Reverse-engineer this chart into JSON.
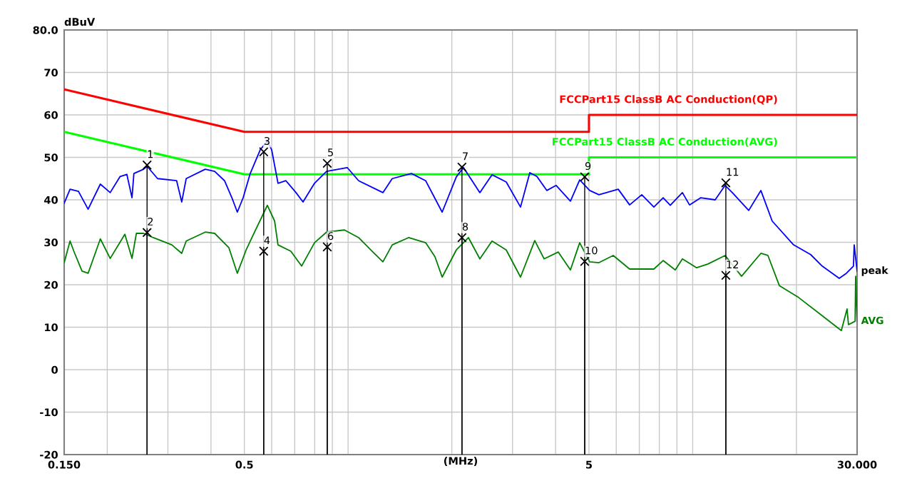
{
  "chart_data": {
    "type": "line",
    "ylabel": "dBuV",
    "xlabel": "(MHz)",
    "log": "x",
    "grid": true,
    "line_style": "solid",
    "marker": "none",
    "xlim": [
      0.15,
      30
    ],
    "ylim": [
      -20,
      80
    ],
    "xticks": [
      {
        "value": 0.15,
        "label": "0.150"
      },
      {
        "value": 0.2,
        "label": null
      },
      {
        "value": 0.3,
        "label": null
      },
      {
        "value": 0.4,
        "label": null
      },
      {
        "value": 0.5,
        "label": "0.5"
      },
      {
        "value": 0.6,
        "label": null
      },
      {
        "value": 0.7,
        "label": null
      },
      {
        "value": 0.8,
        "label": null
      },
      {
        "value": 0.9,
        "label": null
      },
      {
        "value": 1,
        "label": null
      },
      {
        "value": 2,
        "label": null
      },
      {
        "value": 3,
        "label": null
      },
      {
        "value": 4,
        "label": null
      },
      5,
      {
        "value": 6,
        "label": null
      },
      {
        "value": 7,
        "label": null
      },
      {
        "value": 8,
        "label": null
      },
      {
        "value": 9,
        "label": null
      },
      {
        "value": 10,
        "label": null
      },
      {
        "value": 20,
        "label": null
      },
      {
        "value": 30,
        "label": "30.000"
      }
    ],
    "yticks": [
      -20,
      -10,
      0,
      10,
      20,
      30,
      40,
      50,
      60,
      {
        "value": 70,
        "label": "70"
      },
      {
        "value": 80,
        "label": "80.0"
      }
    ],
    "series": [
      {
        "name": "FCCPart15 ClassB AC Conduction(QP)",
        "color": "#ff0000",
        "x": [
          0.15,
          0.5,
          5,
          5,
          30
        ],
        "values": [
          66,
          56,
          56,
          60,
          60
        ]
      },
      {
        "name": "FCCPart15 ClassB AC Conduction(AVG)",
        "color": "#00ff00",
        "x": [
          0.15,
          0.5,
          5,
          5,
          30
        ],
        "values": [
          56,
          46,
          46,
          50,
          50
        ]
      },
      {
        "name": "peak",
        "color": "#0000ff",
        "x": [
          0.15,
          0.156,
          0.165,
          0.176,
          0.191,
          0.204,
          0.218,
          0.228,
          0.236,
          0.239,
          0.255,
          0.261,
          0.28,
          0.318,
          0.329,
          0.339,
          0.385,
          0.41,
          0.438,
          0.46,
          0.477,
          0.496,
          0.52,
          0.556,
          0.583,
          0.6,
          0.626,
          0.66,
          0.706,
          0.74,
          0.799,
          0.866,
          0.994,
          1.073,
          1.262,
          1.343,
          1.527,
          1.679,
          1.875,
          2.061,
          2.162,
          2.412,
          2.616,
          2.877,
          3.165,
          3.368,
          3.531,
          3.774,
          4.016,
          4.418,
          4.7,
          5.024,
          5.345,
          6.08,
          6.561,
          7.115,
          7.715,
          8.208,
          8.609,
          9.336,
          9.79,
          10.56,
          11.62,
          12.42,
          13.03,
          14.54,
          15.77,
          17.01,
          19.62,
          22.0,
          23.75,
          26.62,
          27.92,
          29.28,
          29.42,
          30
        ],
        "values": [
          39.2,
          42.5,
          42.0,
          37.8,
          43.7,
          41.7,
          45.5,
          46.0,
          40.5,
          46.2,
          47.2,
          47.9,
          45.0,
          44.5,
          39.5,
          45.0,
          47.2,
          46.7,
          44.5,
          40.5,
          37.1,
          40.5,
          46.2,
          51.8,
          53.8,
          51.8,
          43.9,
          44.5,
          41.7,
          39.5,
          43.9,
          46.7,
          47.6,
          44.5,
          41.7,
          45.0,
          46.2,
          44.5,
          37.1,
          45.4,
          47.6,
          41.7,
          45.9,
          44.2,
          38.3,
          46.4,
          45.5,
          42.2,
          43.4,
          39.7,
          44.7,
          42.2,
          41.2,
          42.5,
          38.8,
          41.2,
          38.3,
          40.5,
          38.7,
          41.7,
          38.8,
          40.5,
          40.0,
          43.4,
          41.7,
          37.5,
          42.2,
          35.0,
          29.4,
          27.1,
          24.4,
          21.5,
          22.7,
          24.4,
          29.4,
          23.2
        ]
      },
      {
        "name": "AVG",
        "color": "#008000",
        "x": [
          0.15,
          0.156,
          0.16,
          0.169,
          0.176,
          0.191,
          0.204,
          0.225,
          0.236,
          0.243,
          0.255,
          0.272,
          0.308,
          0.329,
          0.339,
          0.385,
          0.41,
          0.451,
          0.477,
          0.506,
          0.538,
          0.583,
          0.612,
          0.626,
          0.682,
          0.733,
          0.799,
          0.866,
          0.976,
          1.073,
          1.18,
          1.262,
          1.343,
          1.498,
          1.679,
          1.787,
          1.875,
          2.061,
          2.235,
          2.412,
          2.616,
          2.877,
          3.165,
          3.48,
          3.705,
          4.074,
          4.418,
          4.7,
          5.024,
          5.345,
          5.88,
          6.561,
          7.715,
          8.208,
          8.901,
          9.336,
          10.27,
          11.08,
          12.42,
          13.86,
          15.77,
          16.53,
          17.84,
          20.29,
          23.41,
          27.0,
          28.05,
          28.32,
          29.6,
          29.71,
          30
        ],
        "values": [
          25.2,
          30.3,
          27.9,
          23.2,
          22.7,
          30.8,
          26.2,
          31.9,
          26.2,
          32.1,
          32.1,
          31.1,
          29.4,
          27.4,
          30.3,
          32.4,
          32.1,
          28.7,
          22.7,
          28.2,
          32.8,
          38.7,
          35.0,
          29.4,
          27.9,
          24.4,
          29.9,
          32.4,
          32.9,
          31.1,
          27.7,
          25.4,
          29.4,
          31.1,
          29.9,
          26.6,
          21.8,
          28.2,
          31.1,
          26.1,
          30.3,
          28.2,
          21.8,
          30.4,
          26.1,
          27.7,
          23.5,
          29.9,
          25.4,
          25.2,
          26.9,
          23.7,
          23.7,
          25.7,
          23.5,
          26.1,
          24.0,
          24.9,
          26.9,
          22.0,
          27.4,
          26.9,
          19.8,
          17.0,
          13.1,
          9.2,
          14.3,
          10.6,
          11.4,
          22.0,
          11.4
        ]
      },
      {
        "type": "lollipop",
        "color": "#000000",
        "marker": "cross",
        "x": [
          0.261,
          0.261,
          0.569,
          0.569,
          0.87,
          0.87,
          2.14,
          2.14,
          4.86,
          4.86,
          12.48,
          12.48
        ],
        "values": [
          48.2,
          32.3,
          51.3,
          27.9,
          48.6,
          28.9,
          47.7,
          31.1,
          45.4,
          25.5,
          44.0,
          22.2
        ]
      }
    ],
    "annotations": [
      {
        "text": "1",
        "x": 0.261,
        "y": 48.2
      },
      {
        "text": "2",
        "x": 0.261,
        "y": 32.3
      },
      {
        "text": "3",
        "x": 0.569,
        "y": 51.3
      },
      {
        "text": "4",
        "x": 0.569,
        "y": 27.9
      },
      {
        "text": "5",
        "x": 0.87,
        "y": 48.6
      },
      {
        "text": "6",
        "x": 0.87,
        "y": 28.9
      },
      {
        "text": "7",
        "x": 2.14,
        "y": 47.7
      },
      {
        "text": "8",
        "x": 2.14,
        "y": 31.1
      },
      {
        "text": "9",
        "x": 4.86,
        "y": 45.4
      },
      {
        "text": "10",
        "x": 4.86,
        "y": 25.5
      },
      {
        "text": "11",
        "x": 12.48,
        "y": 44.0
      },
      {
        "text": "12",
        "x": 12.48,
        "y": 22.2
      }
    ]
  }
}
